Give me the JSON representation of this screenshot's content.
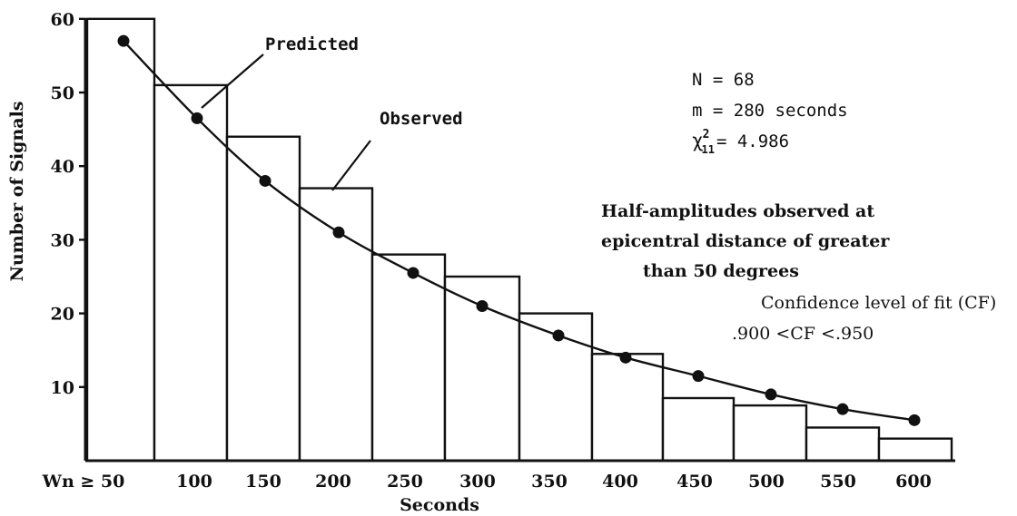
{
  "chart_data": {
    "type": "bar",
    "title": "",
    "xlabel": "Seconds",
    "ylabel": "Number of Signals",
    "ylim": [
      0,
      62
    ],
    "yticks": [
      10,
      20,
      30,
      40,
      50,
      60
    ],
    "categories": [
      "Wn ≥ 50",
      "100",
      "150",
      "200",
      "250",
      "300",
      "350",
      "400",
      "450",
      "500",
      "550",
      "600"
    ],
    "series": [
      {
        "name": "Observed",
        "kind": "bar",
        "values": [
          60,
          51,
          44,
          37,
          28,
          25,
          20,
          14.5,
          8.5,
          7.5,
          4.5,
          3
        ]
      },
      {
        "name": "Predicted",
        "kind": "line-with-points",
        "values": [
          57,
          46.5,
          38,
          31,
          25.5,
          21,
          17,
          14,
          11.5,
          9,
          7,
          5.5
        ]
      }
    ],
    "annotations": {
      "predicted_label": "Predicted",
      "observed_label": "Observed",
      "stats": [
        "N = 68",
        "m = 280 seconds"
      ],
      "chi_symbol": "χ",
      "chi_superscript": "2",
      "chi_subscript": "11",
      "chi_value": "= 4.986",
      "note_lines": [
        "Half-amplitudes observed at",
        "epicentral distance of greater",
        "than 50 degrees"
      ],
      "confidence_label": "Confidence level of fit (CF)",
      "confidence_range": ".900 <CF <.950"
    }
  }
}
